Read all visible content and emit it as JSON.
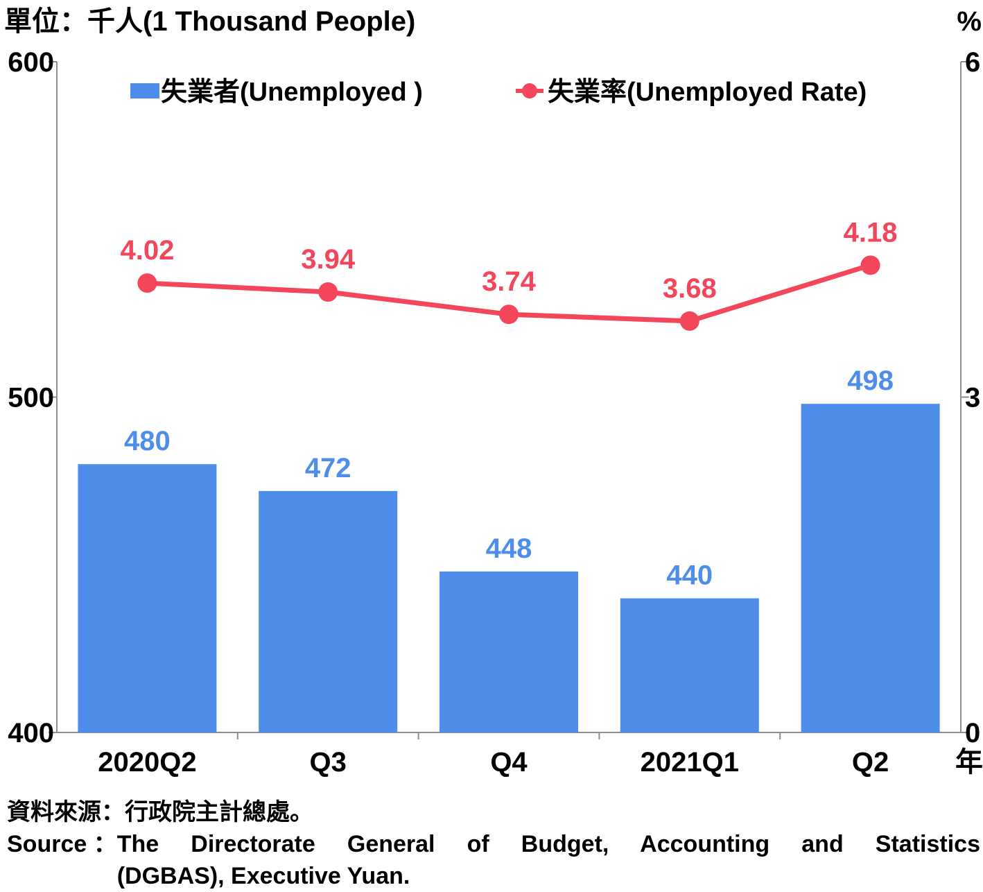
{
  "chart_data": {
    "type": "bar",
    "unit_left": "單位：千人(1 Thousand People)",
    "unit_right": "%",
    "categories": [
      "2020Q2",
      "Q3",
      "Q4",
      "2021Q1",
      "Q2"
    ],
    "x_suffix": "年",
    "left_axis": {
      "ticks": [
        "600",
        "500",
        "400"
      ],
      "ylim": [
        400,
        600
      ]
    },
    "right_axis": {
      "ticks": [
        "6",
        "3",
        "0"
      ],
      "ylim": [
        0,
        6
      ]
    },
    "series": [
      {
        "name": "失業者(Unemployed )",
        "type": "bar",
        "axis": "left",
        "color": "#4f8dea",
        "values": [
          480,
          472,
          448,
          440,
          498
        ],
        "labels": [
          "480",
          "472",
          "448",
          "440",
          "498"
        ]
      },
      {
        "name": "失業率(Unemployed Rate)",
        "type": "line",
        "axis": "right",
        "color": "#f4465a",
        "values": [
          4.02,
          3.94,
          3.74,
          3.68,
          4.18
        ],
        "labels": [
          "4.02",
          "3.94",
          "3.74",
          "3.68",
          "4.18"
        ]
      }
    ],
    "legend": "top",
    "grid": false
  },
  "source": {
    "zh": "資料來源：行政院主計總處。",
    "en_key": "Source ：",
    "en_line1": "The Directorate General of Budget, Accounting and Statistics",
    "en_line2": "(DGBAS), Executive Yuan."
  }
}
